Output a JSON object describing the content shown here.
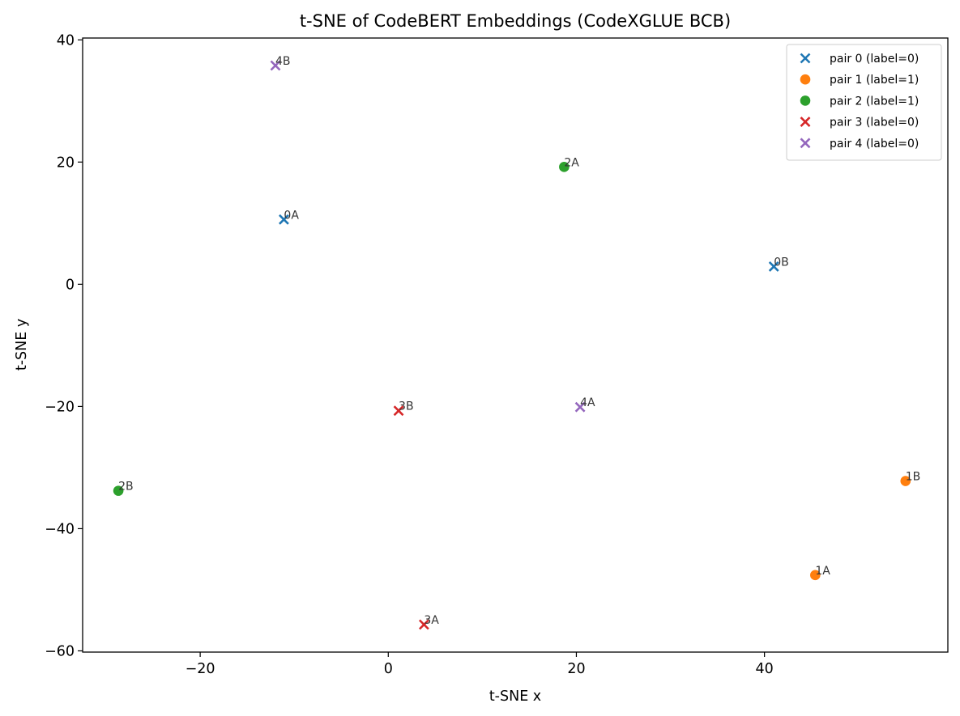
{
  "chart_data": {
    "type": "scatter",
    "title": "t-SNE of CodeBERT Embeddings (CodeXGLUE BCB)",
    "xlabel": "t-SNE x",
    "ylabel": "t-SNE y",
    "xlim": [
      -32.5,
      59.5
    ],
    "ylim": [
      -60.2,
      40.3
    ],
    "xticks": [
      -20,
      0,
      20,
      40
    ],
    "yticks": [
      -60,
      -40,
      -20,
      0,
      20,
      40
    ],
    "grid": false,
    "legend_position": "top-right",
    "series": [
      {
        "name": "pair 0 (label=0)",
        "marker": "x",
        "color": "#1f77b4",
        "points": [
          {
            "label": "0A",
            "x": -11.1,
            "y": 10.6
          },
          {
            "label": "0B",
            "x": 41.0,
            "y": 2.9
          }
        ]
      },
      {
        "name": "pair 1 (label=1)",
        "marker": "circle",
        "color": "#ff7f0e",
        "points": [
          {
            "label": "1A",
            "x": 45.4,
            "y": -47.6
          },
          {
            "label": "1B",
            "x": 55.0,
            "y": -32.2
          }
        ]
      },
      {
        "name": "pair 2 (label=1)",
        "marker": "circle",
        "color": "#2ca02c",
        "points": [
          {
            "label": "2A",
            "x": 18.7,
            "y": 19.2
          },
          {
            "label": "2B",
            "x": -28.7,
            "y": -33.8
          }
        ]
      },
      {
        "name": "pair 3 (label=0)",
        "marker": "x",
        "color": "#d62728",
        "points": [
          {
            "label": "3A",
            "x": 3.8,
            "y": -55.7
          },
          {
            "label": "3B",
            "x": 1.1,
            "y": -20.7
          }
        ]
      },
      {
        "name": "pair 4 (label=0)",
        "marker": "x",
        "color": "#9467bd",
        "points": [
          {
            "label": "4A",
            "x": 20.4,
            "y": -20.1
          },
          {
            "label": "4B",
            "x": -12.0,
            "y": 35.8
          }
        ]
      }
    ]
  }
}
